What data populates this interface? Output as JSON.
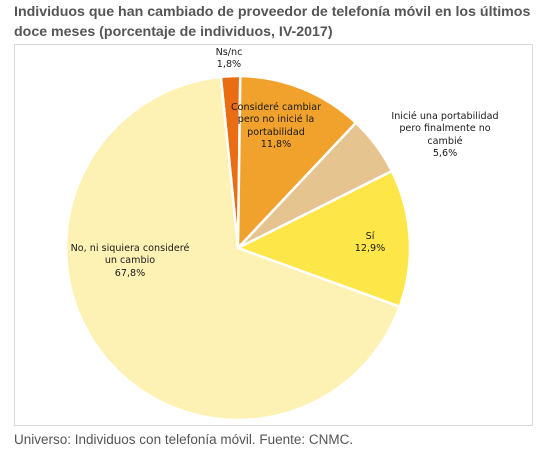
{
  "title": "Individuos que han cambiado de proveedor de telefonía móvil en los últimos doce meses (porcentaje de individuos, IV-2017)",
  "footer": "Universo: Individuos con telefonía móvil. Fuente: CNMC.",
  "chart_data": {
    "type": "pie",
    "title": "Individuos que han cambiado de proveedor de telefonía móvil en los últimos doce meses (porcentaje de individuos, IV-2017)",
    "slices": [
      {
        "label": [
          "Ns/nc"
        ],
        "value_text": "1,8%",
        "value": 1.8,
        "color": "#ea6d14"
      },
      {
        "label": [
          "Consideré cambiar",
          "pero no inicié la",
          "portabilidad"
        ],
        "value_text": "11,8%",
        "value": 11.8,
        "color": "#f0a22c"
      },
      {
        "label": [
          "Inicié una portabilidad",
          "pero finalmente no",
          "cambié"
        ],
        "value_text": "5,6%",
        "value": 5.6,
        "color": "#e6c48f"
      },
      {
        "label": [
          "Sí"
        ],
        "value_text": "12,9%",
        "value": 12.9,
        "color": "#fde648"
      },
      {
        "label": [
          "No, ni siquiera consideré",
          "un cambio"
        ],
        "value_text": "67,8%",
        "value": 67.8,
        "color": "#fdf1b4"
      }
    ]
  }
}
